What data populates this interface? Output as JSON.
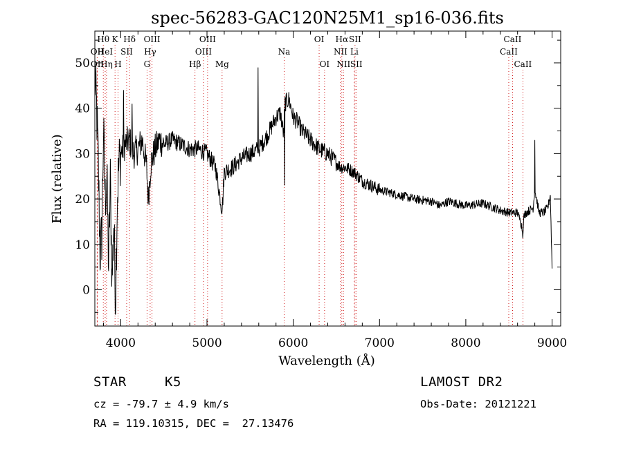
{
  "chart_data": {
    "type": "line",
    "title": "spec-56283-GAC120N25M1_sp16-036.fits",
    "xlabel": "Wavelength (Å)",
    "ylabel": "Flux (relative)",
    "xlim": [
      3700,
      9100
    ],
    "ylim": [
      -8,
      57
    ],
    "xticks": [
      4000,
      5000,
      6000,
      7000,
      8000,
      9000
    ],
    "yticks": [
      0,
      10,
      20,
      30,
      40,
      50
    ],
    "grid": false,
    "spectrum_anchors": {
      "x": [
        3700,
        3720,
        3740,
        3760,
        3780,
        3800,
        3820,
        3840,
        3860,
        3880,
        3900,
        3920,
        3940,
        3960,
        3980,
        4000,
        4050,
        4100,
        4150,
        4200,
        4250,
        4300,
        4320,
        4350,
        4400,
        4450,
        4500,
        4600,
        4700,
        4800,
        4900,
        5000,
        5100,
        5170,
        5180,
        5190,
        5200,
        5300,
        5400,
        5500,
        5600,
        5700,
        5800,
        5850,
        5890,
        5900,
        5950,
        6000,
        6050,
        6100,
        6200,
        6300,
        6400,
        6500,
        6550,
        6600,
        6700,
        6800,
        6900,
        7000,
        7200,
        7400,
        7600,
        7700,
        7800,
        8000,
        8200,
        8400,
        8500,
        8600,
        8650,
        8660,
        8670,
        8700,
        8780,
        8800,
        8850,
        8900,
        8950,
        8980,
        9000
      ],
      "y": [
        47,
        40,
        28,
        8,
        12,
        35,
        20,
        25,
        5,
        24,
        2,
        15,
        -2,
        20,
        28,
        30,
        32,
        33,
        30,
        31,
        33,
        27,
        20,
        28,
        31,
        33,
        32,
        33,
        32,
        31,
        31,
        30,
        27,
        18,
        19,
        22,
        26,
        27,
        29,
        30,
        31,
        34,
        38,
        39,
        34,
        41,
        42,
        38,
        37,
        35,
        33,
        31,
        30,
        28,
        27,
        27,
        26,
        24,
        23,
        22,
        21,
        20,
        19.5,
        18.5,
        19.5,
        18.5,
        19,
        17.5,
        17,
        17,
        14,
        12,
        16,
        17,
        18,
        22,
        17,
        17,
        18,
        21,
        5
      ]
    },
    "spikes": [
      {
        "x": 4030,
        "y": 44
      },
      {
        "x": 4130,
        "y": 41
      },
      {
        "x": 5590,
        "y": 49
      },
      {
        "x": 5900,
        "y": 23
      },
      {
        "x": 8800,
        "y": 33
      }
    ],
    "lines": [
      {
        "label": "Hθ",
        "x": 3798,
        "row": 0
      },
      {
        "label": "OII",
        "x": 3727,
        "row": 1
      },
      {
        "label": "OII",
        "x": 3729,
        "row": 2
      },
      {
        "label": "HeI",
        "x": 3820,
        "row": 1
      },
      {
        "label": "Hη",
        "x": 3836,
        "row": 2
      },
      {
        "label": "K",
        "x": 3934,
        "row": 0
      },
      {
        "label": "SII",
        "x": 4069,
        "row": 1
      },
      {
        "label": "H",
        "x": 3969,
        "row": 2
      },
      {
        "label": "Hδ",
        "x": 4102,
        "row": 0
      },
      {
        "label": "OIII",
        "x": 4363,
        "row": 0
      },
      {
        "label": "Hγ",
        "x": 4341,
        "row": 1
      },
      {
        "label": "G",
        "x": 4305,
        "row": 2
      },
      {
        "label": "Hβ",
        "x": 4861,
        "row": 2
      },
      {
        "label": "OIII",
        "x": 5007,
        "row": 0
      },
      {
        "label": "OIII",
        "x": 4959,
        "row": 1
      },
      {
        "label": "Mg",
        "x": 5175,
        "row": 2
      },
      {
        "label": "Na",
        "x": 5894,
        "row": 1
      },
      {
        "label": "OI",
        "x": 6300,
        "row": 0
      },
      {
        "label": "OI",
        "x": 6363,
        "row": 2
      },
      {
        "label": "Hα",
        "x": 6563,
        "row": 0
      },
      {
        "label": "SII",
        "x": 6716,
        "row": 0
      },
      {
        "label": "NII",
        "x": 6548,
        "row": 1
      },
      {
        "label": "Li",
        "x": 6708,
        "row": 1
      },
      {
        "label": "NII",
        "x": 6583,
        "row": 2
      },
      {
        "label": "SII",
        "x": 6731,
        "row": 2
      },
      {
        "label": "CaII",
        "x": 8542,
        "row": 0
      },
      {
        "label": "CaII",
        "x": 8498,
        "row": 1
      },
      {
        "label": "CaII",
        "x": 8662,
        "row": 2
      }
    ],
    "line_color": "#000000",
    "marker_color": "#cc0000"
  },
  "info": {
    "class": "STAR",
    "subclass": "K5",
    "cz": "cz = -79.7 ± 4.9 km/s",
    "radec": "RA = 119.10315, DEC =  27.13476",
    "survey": "LAMOST DR2",
    "obsdate": "Obs-Date: 20121221"
  }
}
